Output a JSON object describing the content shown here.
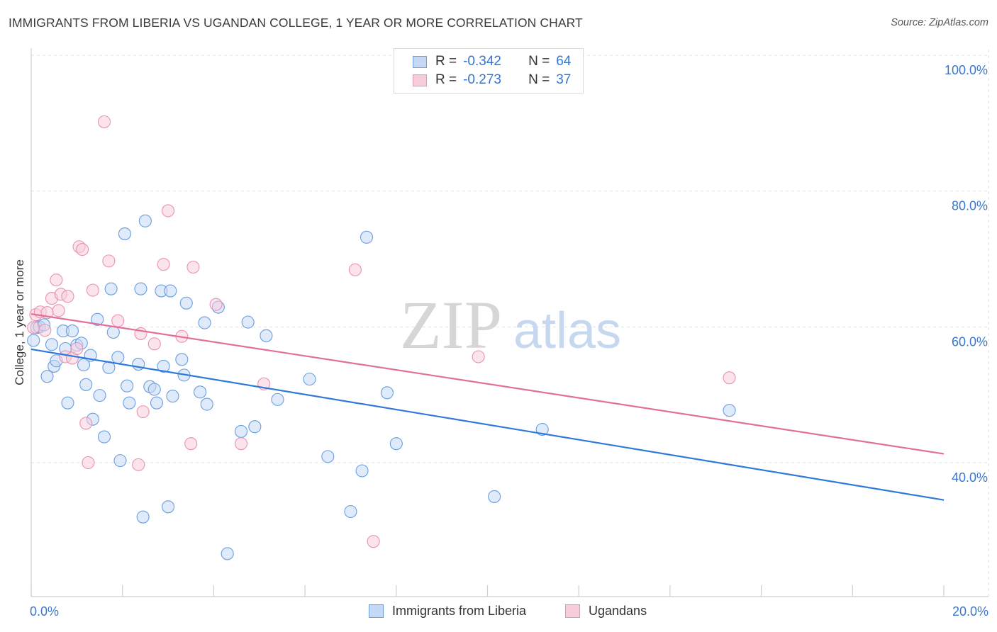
{
  "chart_data": {
    "type": "scatter",
    "title": "IMMIGRANTS FROM LIBERIA VS UGANDAN COLLEGE, 1 YEAR OR MORE CORRELATION CHART",
    "source": "Source: ZipAtlas.com",
    "watermark": {
      "zip": "ZIP",
      "atlas": "atlas"
    },
    "xlabel": "",
    "ylabel": "College, 1 year or more",
    "xlim": [
      0,
      20
    ],
    "ylim": [
      20,
      104
    ],
    "x_tick_labels": [
      "0.0%",
      "20.0%"
    ],
    "y_ticks": [
      {
        "value": 40,
        "label": "40.0%"
      },
      {
        "value": 60,
        "label": "60.0%"
      },
      {
        "value": 80,
        "label": "80.0%"
      },
      {
        "value": 100,
        "label": "100.0%"
      }
    ],
    "grid": true,
    "legend_position": "top-center",
    "series": [
      {
        "name": "Immigrants from Liberia",
        "color": "#6a9ee0",
        "fill": "#c5d9f6",
        "line_color": "#2f7ad8",
        "R": "-0.342",
        "N": "64",
        "trend": {
          "x0": 0,
          "y0": 56.7,
          "x1": 20,
          "y1": 34.5
        },
        "points": [
          [
            0.05,
            58.0
          ],
          [
            0.12,
            59.9
          ],
          [
            0.18,
            60.0
          ],
          [
            0.28,
            60.3
          ],
          [
            0.35,
            52.7
          ],
          [
            0.45,
            57.4
          ],
          [
            0.5,
            54.2
          ],
          [
            0.55,
            55.0
          ],
          [
            0.7,
            59.4
          ],
          [
            0.75,
            56.8
          ],
          [
            0.8,
            48.8
          ],
          [
            0.9,
            59.4
          ],
          [
            1.0,
            57.3
          ],
          [
            1.1,
            57.6
          ],
          [
            1.15,
            54.4
          ],
          [
            1.2,
            51.5
          ],
          [
            1.3,
            55.8
          ],
          [
            1.35,
            46.4
          ],
          [
            1.45,
            61.1
          ],
          [
            1.5,
            49.9
          ],
          [
            1.6,
            43.8
          ],
          [
            1.7,
            54.0
          ],
          [
            1.75,
            65.6
          ],
          [
            1.8,
            59.2
          ],
          [
            1.9,
            55.5
          ],
          [
            1.95,
            40.3
          ],
          [
            2.05,
            73.7
          ],
          [
            2.1,
            51.3
          ],
          [
            2.15,
            48.8
          ],
          [
            2.35,
            54.5
          ],
          [
            2.4,
            65.6
          ],
          [
            2.45,
            32.0
          ],
          [
            2.5,
            75.6
          ],
          [
            2.6,
            51.2
          ],
          [
            2.7,
            50.8
          ],
          [
            2.75,
            48.8
          ],
          [
            2.85,
            65.3
          ],
          [
            2.9,
            54.2
          ],
          [
            3.0,
            33.5
          ],
          [
            3.05,
            65.3
          ],
          [
            3.1,
            49.8
          ],
          [
            3.3,
            55.2
          ],
          [
            3.35,
            52.9
          ],
          [
            3.4,
            63.5
          ],
          [
            3.7,
            50.4
          ],
          [
            3.8,
            60.6
          ],
          [
            3.85,
            48.6
          ],
          [
            4.1,
            62.9
          ],
          [
            4.3,
            26.6
          ],
          [
            4.6,
            44.6
          ],
          [
            4.75,
            60.7
          ],
          [
            4.9,
            45.3
          ],
          [
            5.15,
            58.7
          ],
          [
            5.4,
            49.3
          ],
          [
            6.1,
            52.3
          ],
          [
            6.5,
            40.9
          ],
          [
            7.0,
            32.8
          ],
          [
            7.25,
            38.8
          ],
          [
            7.35,
            73.2
          ],
          [
            7.8,
            50.3
          ],
          [
            8.0,
            42.8
          ],
          [
            10.15,
            35.0
          ],
          [
            11.2,
            44.9
          ],
          [
            15.3,
            47.7
          ]
        ]
      },
      {
        "name": "Ugandans",
        "color": "#e993b2",
        "fill": "#f7cddb",
        "line_color": "#e0709a",
        "R": "-0.273",
        "N": "37",
        "trend": {
          "x0": 0,
          "y0": 61.9,
          "x1": 20,
          "y1": 41.3
        },
        "points": [
          [
            0.05,
            59.9
          ],
          [
            0.1,
            61.8
          ],
          [
            0.2,
            62.2
          ],
          [
            0.3,
            59.5
          ],
          [
            0.35,
            62.1
          ],
          [
            0.45,
            64.2
          ],
          [
            0.55,
            66.9
          ],
          [
            0.6,
            62.4
          ],
          [
            0.65,
            64.8
          ],
          [
            0.75,
            55.6
          ],
          [
            0.8,
            64.5
          ],
          [
            0.9,
            55.4
          ],
          [
            1.0,
            56.8
          ],
          [
            1.05,
            71.8
          ],
          [
            1.12,
            71.4
          ],
          [
            1.2,
            45.8
          ],
          [
            1.25,
            40.0
          ],
          [
            1.35,
            65.4
          ],
          [
            1.6,
            90.2
          ],
          [
            1.7,
            69.7
          ],
          [
            1.9,
            60.9
          ],
          [
            2.35,
            39.7
          ],
          [
            2.4,
            59.0
          ],
          [
            2.45,
            47.5
          ],
          [
            2.7,
            57.5
          ],
          [
            2.9,
            69.2
          ],
          [
            3.0,
            77.1
          ],
          [
            3.3,
            58.6
          ],
          [
            3.5,
            42.8
          ],
          [
            3.55,
            68.8
          ],
          [
            4.05,
            63.3
          ],
          [
            4.6,
            42.8
          ],
          [
            5.1,
            51.6
          ],
          [
            7.1,
            68.4
          ],
          [
            7.5,
            28.4
          ],
          [
            9.8,
            55.6
          ],
          [
            15.3,
            52.5
          ]
        ]
      }
    ]
  },
  "legend_labels": {
    "r_prefix": "R =",
    "n_prefix": "N ="
  }
}
